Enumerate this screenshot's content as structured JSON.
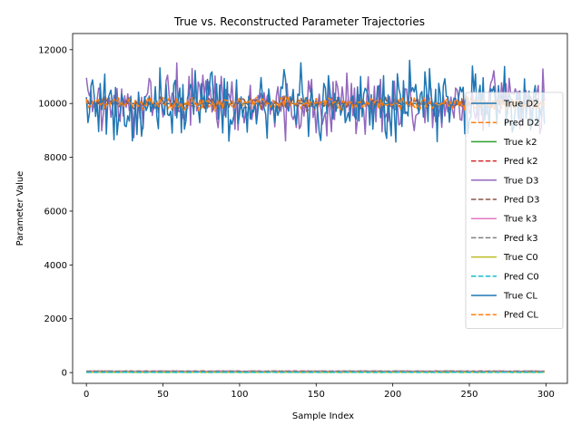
{
  "chart_data": {
    "type": "line",
    "title": "True vs. Reconstructed Parameter Trajectories",
    "xlabel": "Sample Index",
    "ylabel": "Parameter Value",
    "xlim": [
      -9,
      314
    ],
    "ylim": [
      -400,
      12600
    ],
    "xticks": [
      0,
      50,
      100,
      150,
      200,
      250,
      300
    ],
    "yticks": [
      0,
      2000,
      4000,
      6000,
      8000,
      10000,
      12000
    ],
    "grid": false,
    "legend_position": "right",
    "n_samples": 300,
    "series": [
      {
        "name": "True D2",
        "style": "solid",
        "color": "#1f77b4",
        "center": 10000,
        "spread": 0
      },
      {
        "name": "Pred D2",
        "style": "dashed",
        "color": "#ff7f0e",
        "center": 10000,
        "spread": 350
      },
      {
        "name": "True k2",
        "style": "solid",
        "color": "#2ca02c",
        "center": 50,
        "spread": 20
      },
      {
        "name": "Pred k2",
        "style": "dashed",
        "color": "#d62728",
        "center": 50,
        "spread": 15
      },
      {
        "name": "True D3",
        "style": "solid",
        "color": "#9467bd",
        "center": 10000,
        "spread": 1700
      },
      {
        "name": "Pred D3",
        "style": "dashed",
        "color": "#8c564b",
        "center": 10000,
        "spread": 350
      },
      {
        "name": "True k3",
        "style": "solid",
        "color": "#e377c2",
        "center": 50,
        "spread": 20
      },
      {
        "name": "Pred k3",
        "style": "dashed",
        "color": "#7f7f7f",
        "center": 50,
        "spread": 15
      },
      {
        "name": "True C0",
        "style": "solid",
        "color": "#bcbd22",
        "center": 10,
        "spread": 8
      },
      {
        "name": "Pred C0",
        "style": "dashed",
        "color": "#17becf",
        "center": 10,
        "spread": 6
      },
      {
        "name": "True CL",
        "style": "solid",
        "color": "#1f77b4",
        "center": 10000,
        "spread": 1900
      },
      {
        "name": "Pred CL",
        "style": "dashed",
        "color": "#ff7f0e",
        "center": 10000,
        "spread": 350
      }
    ]
  }
}
